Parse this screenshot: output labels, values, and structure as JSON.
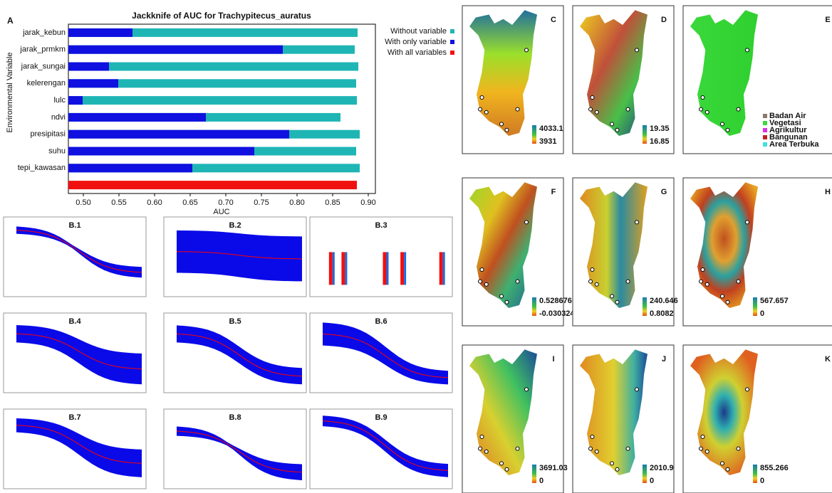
{
  "chart_data": {
    "type": "hbar_overlay",
    "panel_label": "A",
    "title": "Jackknife of AUC for Trachypitecus_auratus",
    "x_label": "AUC",
    "y_label": "Environmental Variable",
    "categories": [
      "jarak_kebun",
      "jarak_prmkm",
      "jarak_sungai",
      "kelerengan",
      "lulc",
      "ndvi",
      "presipitasi",
      "suhu",
      "tepi_kawasan",
      null
    ],
    "series": [
      {
        "name": "Without variable",
        "color": "#1fb5b5",
        "values": [
          0.885,
          0.881,
          0.886,
          0.883,
          0.884,
          0.861,
          0.888,
          0.883,
          0.888,
          null
        ]
      },
      {
        "name": "With only variable",
        "color": "#1010e0",
        "values": [
          0.569,
          0.78,
          0.536,
          0.549,
          0.499,
          0.672,
          0.789,
          0.74,
          0.653,
          null
        ]
      },
      {
        "name": "With all variables",
        "color": "#f01010",
        "values": [
          null,
          null,
          null,
          null,
          null,
          null,
          null,
          null,
          null,
          0.884
        ]
      }
    ],
    "xlim": [
      0.479,
      0.91
    ],
    "xticks": [
      {
        "value": 0.5,
        "label": "0.50"
      },
      0.55,
      {
        "value": 0.6,
        "label": "0.60"
      },
      0.65,
      {
        "value": 0.7,
        "label": "0.70"
      },
      0.75,
      {
        "value": 0.8,
        "label": "0.80"
      },
      0.85,
      {
        "value": 0.9,
        "label": "0.90"
      }
    ],
    "legend": "right"
  },
  "response_curves": [
    "B.1",
    "B.2",
    "B.3",
    "B.4",
    "B.5",
    "B.6",
    "B.7",
    "B.8",
    "B.9"
  ],
  "maps": [
    {
      "label": "C",
      "legend_max": 4033.1,
      "legend_min": 3931
    },
    {
      "label": "D",
      "legend_max": 19.35,
      "legend_min": 16.85
    },
    {
      "label": "E",
      "classes": [
        "Badan Air",
        "Vegetasi",
        "Agrikultur",
        "Bangunan",
        "Area Terbuka"
      ]
    },
    {
      "label": "F",
      "legend_max": 0.528676,
      "legend_min": -0.0303243
    },
    {
      "label": "G",
      "legend_max": 240.646,
      "legend_min": 0.8082
    },
    {
      "label": "H",
      "legend_max": 567.657,
      "legend_min": 0
    },
    {
      "label": "I",
      "legend_max": 3691.03,
      "legend_min": 0
    },
    {
      "label": "J",
      "legend_max": 2010.9,
      "legend_min": 0
    },
    {
      "label": "K",
      "legend_max": 855.266,
      "legend_min": 0
    }
  ]
}
